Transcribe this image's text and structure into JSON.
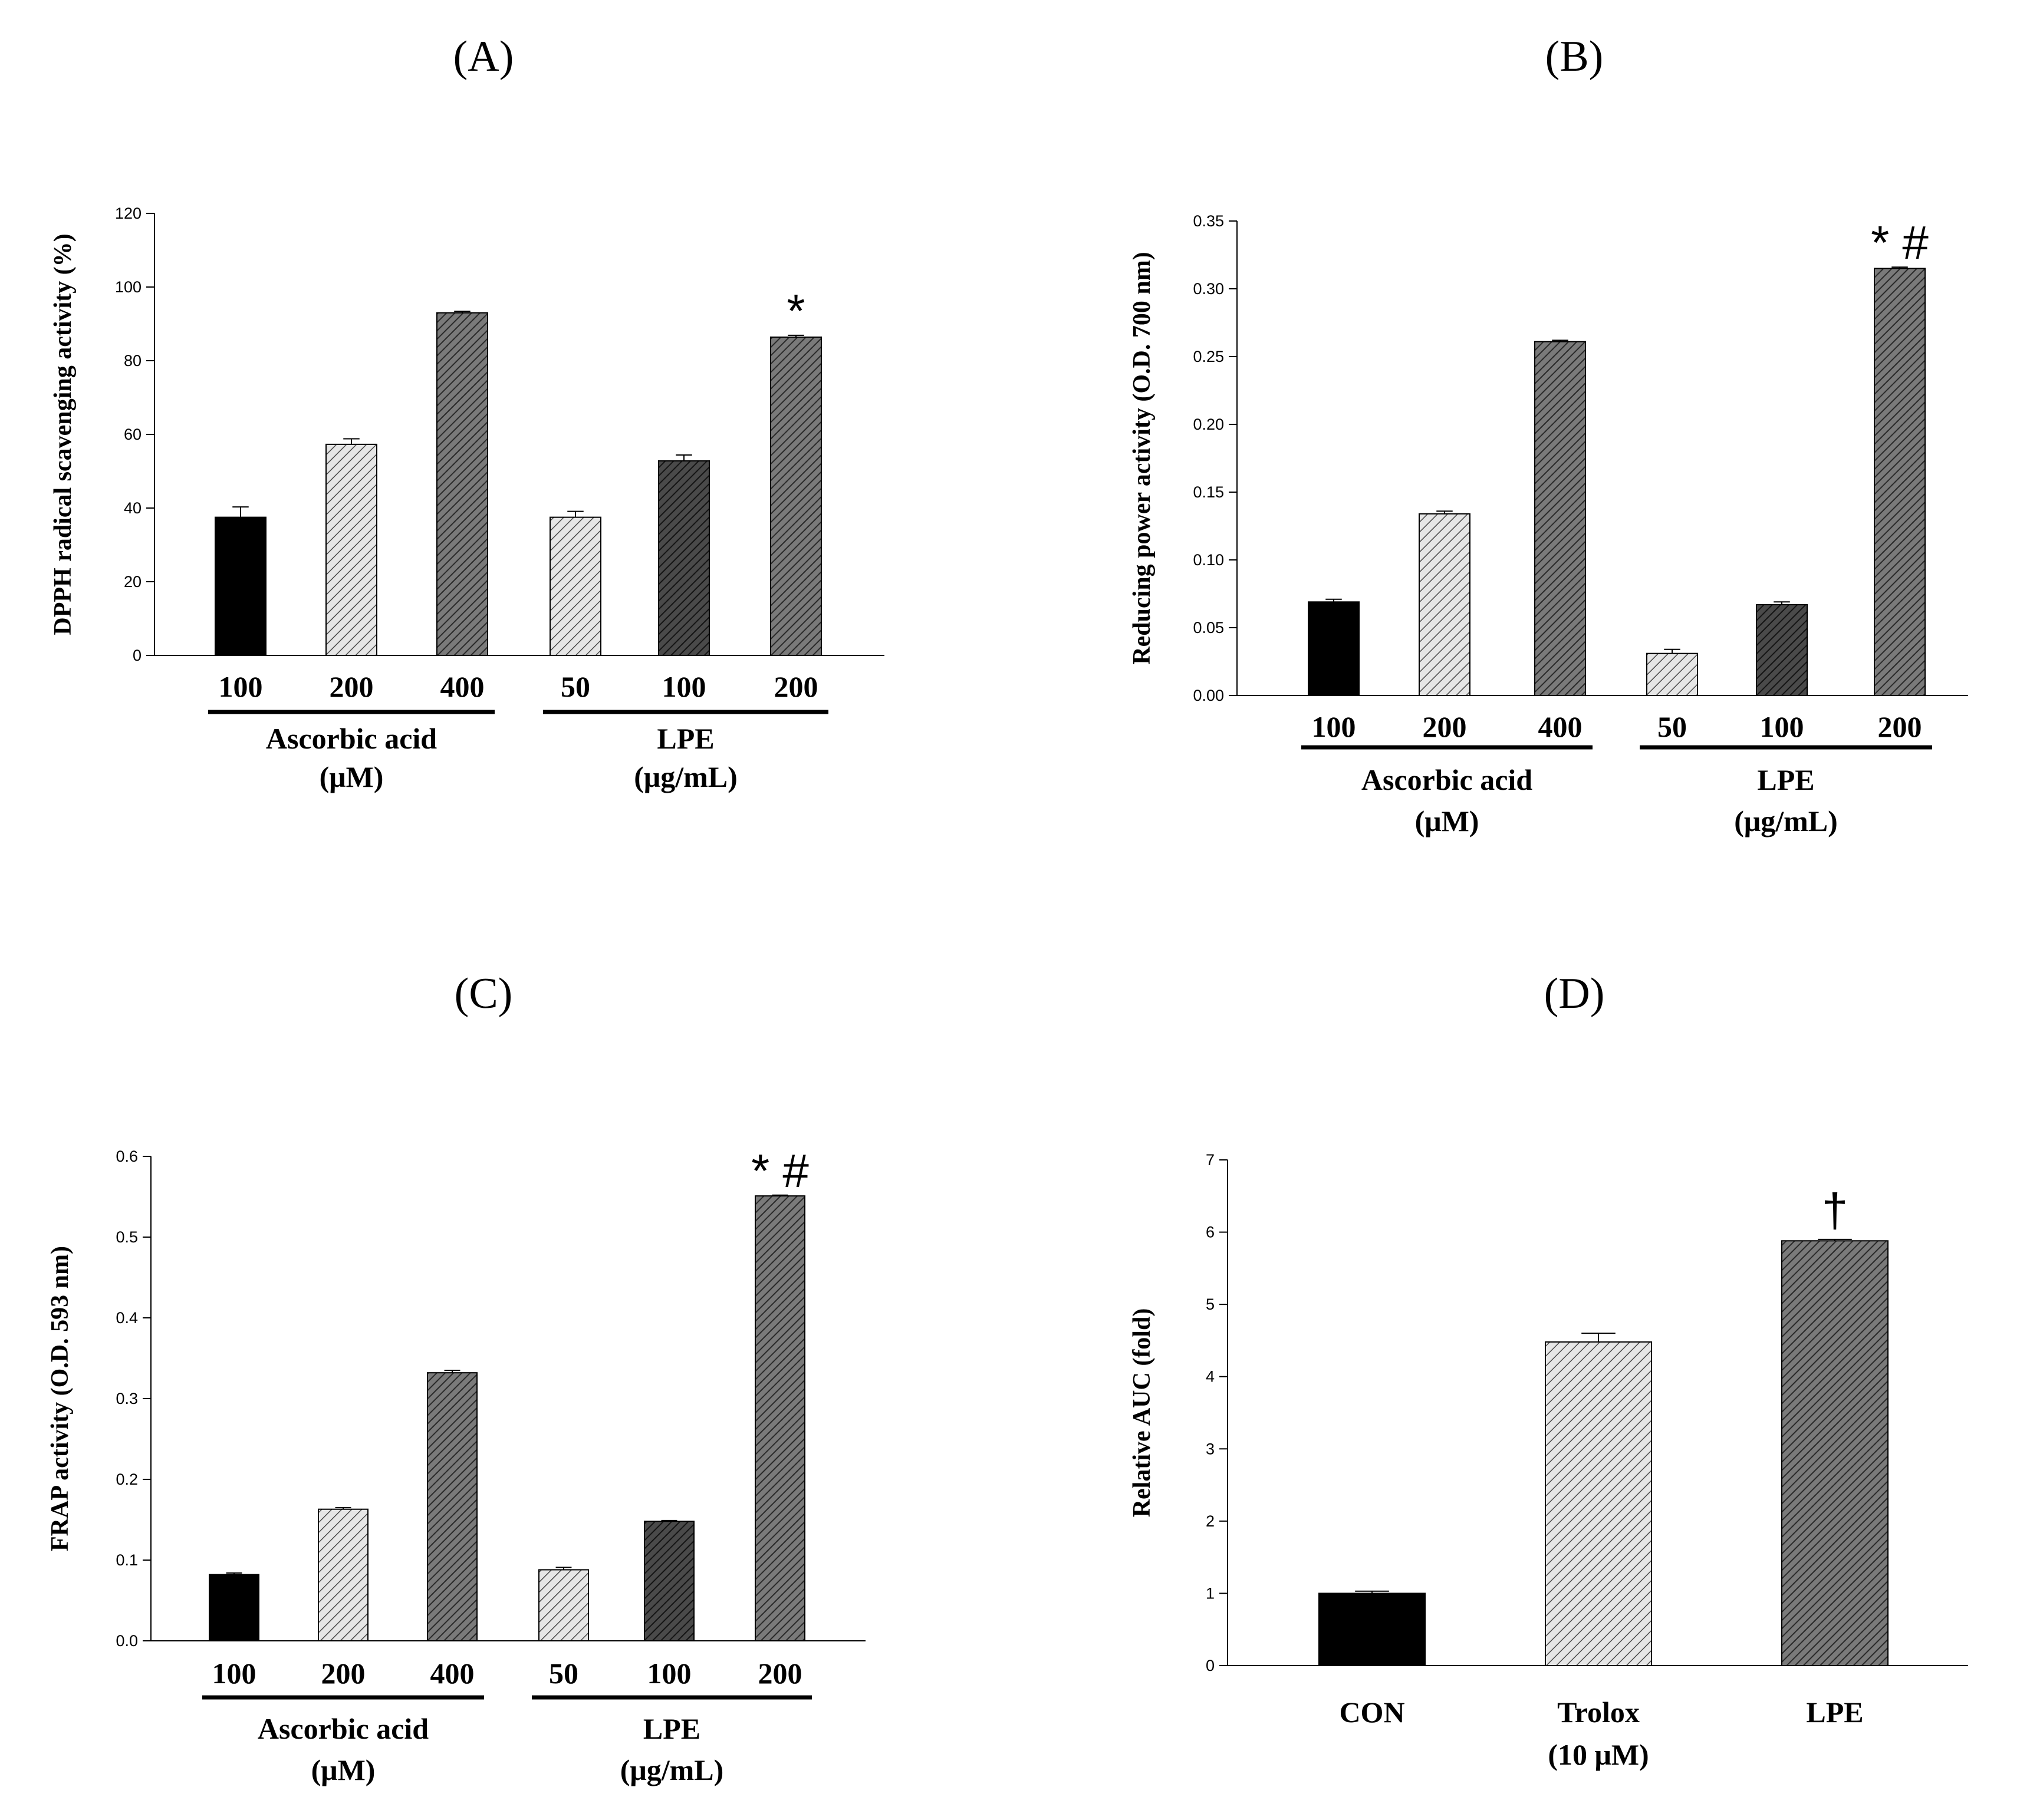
{
  "chart_data": [
    {
      "type": "bar",
      "panel": "A",
      "ylabel": "DPPH radical scavenging activity (%)",
      "ylim": [
        0,
        120
      ],
      "yticks": [
        0,
        20,
        40,
        60,
        80,
        100,
        120
      ],
      "categories": [
        "100",
        "200",
        "400",
        "50",
        "100",
        "200"
      ],
      "values": [
        37.5,
        57.3,
        93.0,
        37.5,
        52.8,
        86.4
      ],
      "errors": [
        2.8,
        1.5,
        0.4,
        1.6,
        1.6,
        0.5
      ],
      "fills": [
        "solid-black",
        "hatch-light",
        "hatch-dark",
        "hatch-light",
        "hatch-darker",
        "hatch-dark"
      ],
      "annotations": [
        "",
        "",
        "",
        "",
        "",
        "*"
      ],
      "groups": [
        {
          "lines": [
            "Ascorbic acid",
            "(μM)"
          ],
          "from": 0,
          "to": 2
        },
        {
          "lines": [
            "LPE",
            "(μg/mL)"
          ],
          "from": 3,
          "to": 5
        }
      ]
    },
    {
      "type": "bar",
      "panel": "B",
      "ylabel": "Reducing power activity (O.D. 700 nm)",
      "ylim": [
        0,
        0.35
      ],
      "yticks": [
        "0.00",
        "0.05",
        "0.10",
        "0.15",
        "0.20",
        "0.25",
        "0.30",
        "0.35"
      ],
      "categories": [
        "100",
        "200",
        "400",
        "50",
        "100",
        "200"
      ],
      "values": [
        0.069,
        0.134,
        0.261,
        0.031,
        0.067,
        0.315
      ],
      "errors": [
        0.002,
        0.002,
        0.001,
        0.003,
        0.002,
        0.001
      ],
      "fills": [
        "solid-black",
        "hatch-light",
        "hatch-dark",
        "hatch-light",
        "hatch-darker",
        "hatch-dark"
      ],
      "annotations": [
        "",
        "",
        "",
        "",
        "",
        "* #"
      ],
      "groups": [
        {
          "lines": [
            "Ascorbic acid",
            "(μM)"
          ],
          "from": 0,
          "to": 2
        },
        {
          "lines": [
            "LPE",
            "(μg/mL)"
          ],
          "from": 3,
          "to": 5
        }
      ]
    },
    {
      "type": "bar",
      "panel": "C",
      "ylabel": "FRAP activity (O.D. 593 nm)",
      "ylim": [
        0,
        0.6
      ],
      "yticks": [
        "0.0",
        "0.1",
        "0.2",
        "0.3",
        "0.4",
        "0.5",
        "0.6"
      ],
      "categories": [
        "100",
        "200",
        "400",
        "50",
        "100",
        "200"
      ],
      "values": [
        0.082,
        0.163,
        0.332,
        0.088,
        0.148,
        0.551
      ],
      "errors": [
        0.002,
        0.002,
        0.003,
        0.003,
        0.001,
        0.001
      ],
      "fills": [
        "solid-black",
        "hatch-light",
        "hatch-dark",
        "hatch-light",
        "hatch-darker",
        "hatch-dark"
      ],
      "annotations": [
        "",
        "",
        "",
        "",
        "",
        "* #"
      ],
      "groups": [
        {
          "lines": [
            "Ascorbic acid",
            "(μM)"
          ],
          "from": 0,
          "to": 2
        },
        {
          "lines": [
            "LPE",
            "(μg/mL)"
          ],
          "from": 3,
          "to": 5
        }
      ]
    },
    {
      "type": "bar",
      "panel": "D",
      "ylabel": "Relative AUC (fold)",
      "ylim": [
        0,
        7
      ],
      "yticks": [
        0,
        1,
        2,
        3,
        4,
        5,
        6,
        7
      ],
      "categories": [
        "CON",
        "Trolox\n(10 μM)",
        "LPE"
      ],
      "values": [
        1.0,
        4.48,
        5.88
      ],
      "errors": [
        0.03,
        0.12,
        0.02
      ],
      "fills": [
        "solid-black",
        "hatch-light",
        "hatch-dark"
      ],
      "annotations": [
        "",
        "",
        "†"
      ],
      "groups": []
    }
  ],
  "panel_labels": [
    "(A)",
    "(B)",
    "(C)",
    "(D)"
  ]
}
